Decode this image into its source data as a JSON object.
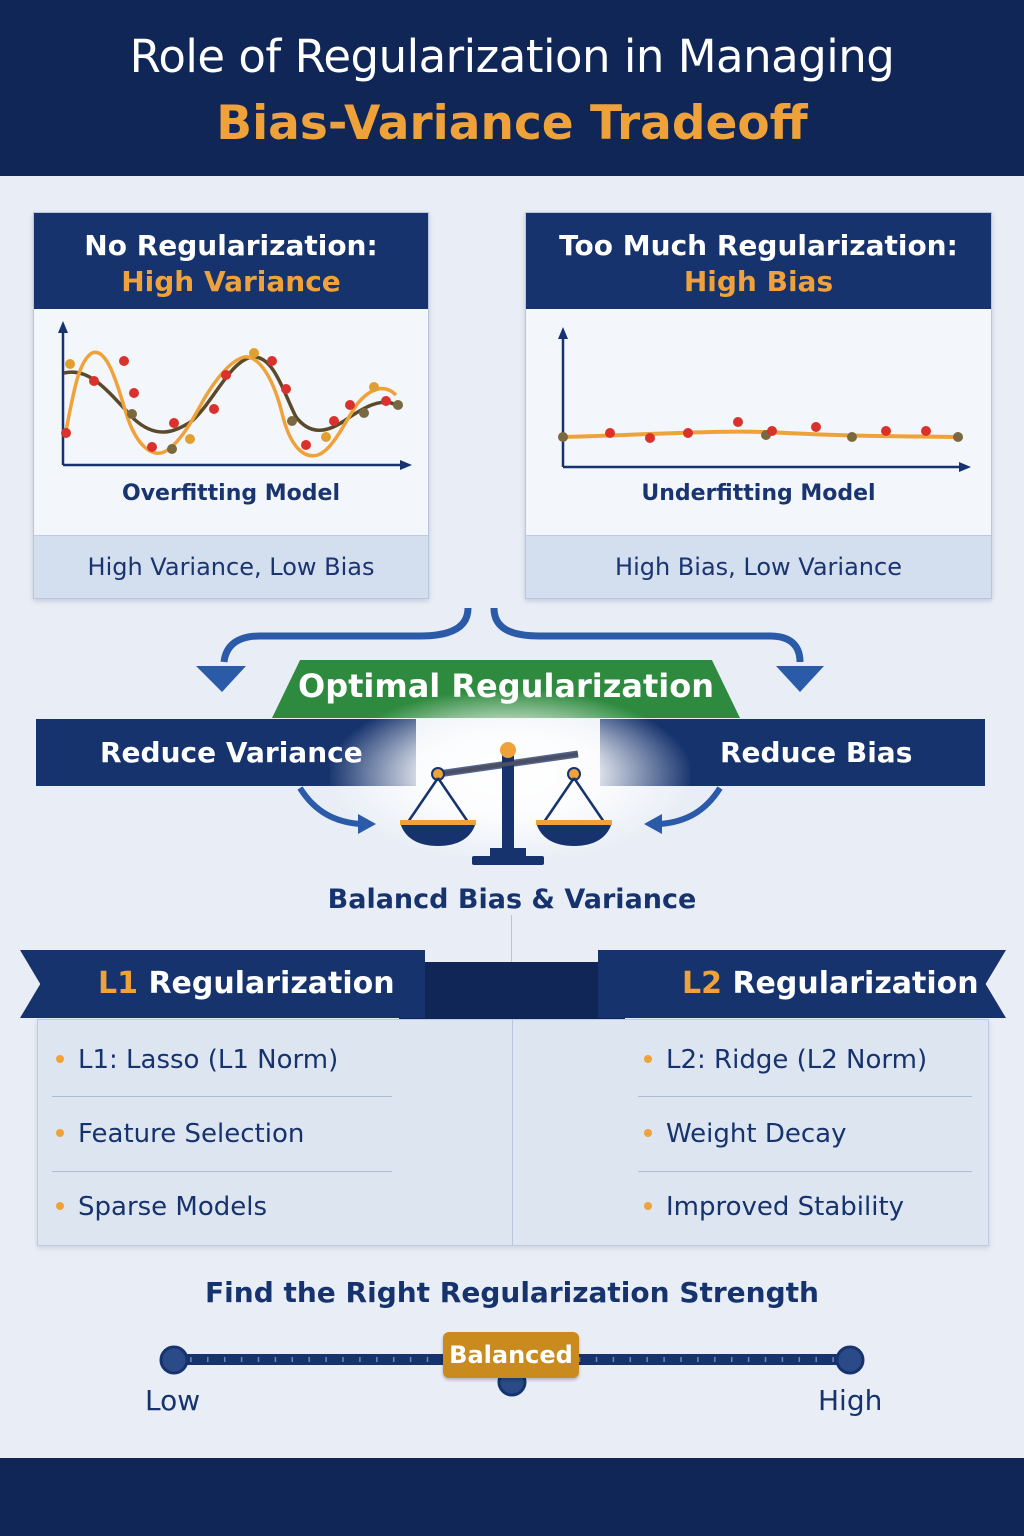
{
  "title": {
    "line1": "Role of Regularization in Managing",
    "line2": "Bias-Variance Tradeoff"
  },
  "panels": [
    {
      "heading": "No Regularization:",
      "subheading": "High Variance",
      "caption": "Overfitting Model",
      "footer": "High Variance, Low Bias"
    },
    {
      "heading": "Too Much Regularization:",
      "subheading": "High Bias",
      "caption": "Underfitting Model",
      "footer": "High Bias, Low Variance"
    }
  ],
  "optimal": {
    "label": "Optimal Regularization",
    "left": "Reduce Variance",
    "right": "Reduce Bias",
    "result": "Balancd Bias & Variance"
  },
  "methods": {
    "l1": {
      "tag": "L1",
      "title": "Regularization",
      "items": [
        "L1: Lasso (L1 Norm)",
        "Feature Selection",
        "Sparse Models"
      ]
    },
    "l2": {
      "tag": "L2",
      "title": "Regularization",
      "items": [
        "L2: Ridge (L2 Norm)",
        "Weight Decay",
        "Improved Stability"
      ]
    }
  },
  "strength": {
    "title": "Find the Right Regularization Strength",
    "low": "Low",
    "balanced": "Balanced",
    "high": "High",
    "level": 0.5
  },
  "colors": {
    "navy": "#16336e",
    "orange": "#f0a23a",
    "green": "#2e8a3e",
    "background": "#e9eef6"
  }
}
